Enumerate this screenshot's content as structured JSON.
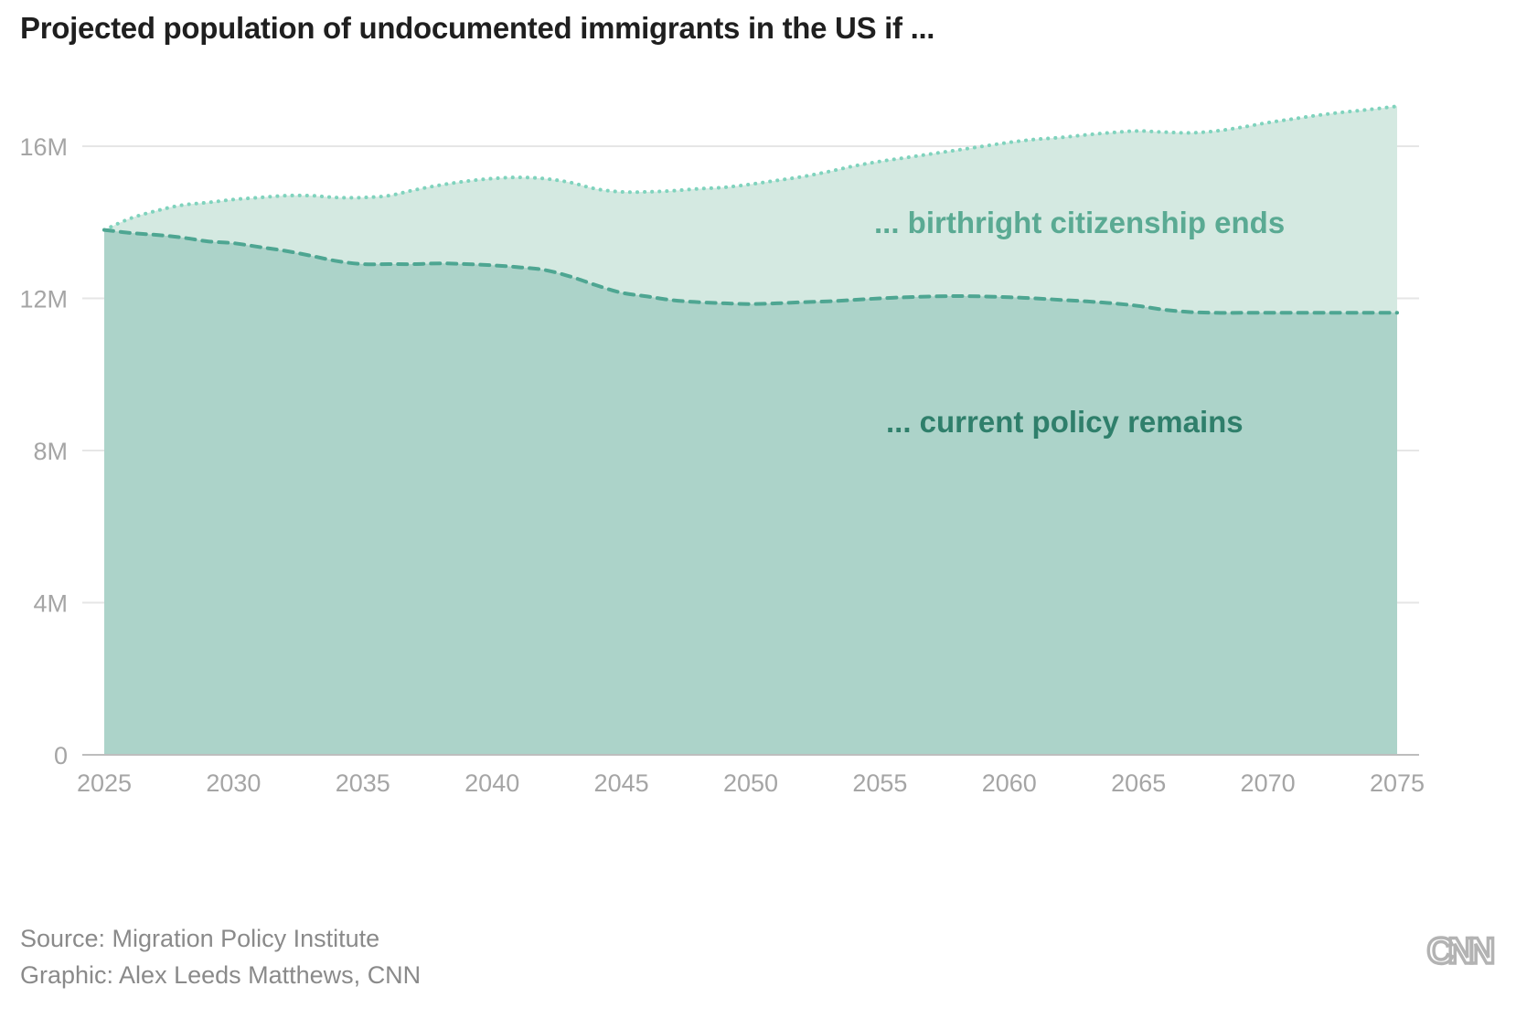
{
  "title": "Projected population of undocumented immigrants in the US if ...",
  "source": "Source: Migration Policy Institute",
  "credit": "Graphic: Alex Leeds Matthews, CNN",
  "logo": "CNN",
  "chart_data": {
    "type": "area",
    "title": "Projected population of undocumented immigrants in the US if ...",
    "xlabel": "",
    "ylabel": "",
    "xlim": [
      2025,
      2075
    ],
    "ylim": [
      0,
      17000000
    ],
    "x_ticks": [
      2025,
      2030,
      2035,
      2040,
      2045,
      2050,
      2055,
      2060,
      2065,
      2070,
      2075
    ],
    "x_tick_labels": [
      "2025",
      "2030",
      "2035",
      "2040",
      "2045",
      "2050",
      "2055",
      "2060",
      "2065",
      "2070",
      "2075"
    ],
    "y_ticks": [
      0,
      4000000,
      8000000,
      12000000,
      16000000
    ],
    "y_tick_labels": [
      "0",
      "4M",
      "8M",
      "12M",
      "16M"
    ],
    "grid": "horizontal",
    "x": [
      2025,
      2026,
      2027,
      2028,
      2029,
      2030,
      2031,
      2032,
      2033,
      2034,
      2035,
      2036,
      2037,
      2038,
      2039,
      2040,
      2041,
      2042,
      2043,
      2044,
      2045,
      2046,
      2047,
      2048,
      2049,
      2050,
      2051,
      2052,
      2053,
      2054,
      2055,
      2056,
      2057,
      2058,
      2059,
      2060,
      2061,
      2062,
      2063,
      2064,
      2065,
      2066,
      2067,
      2068,
      2069,
      2070,
      2071,
      2072,
      2073,
      2074,
      2075
    ],
    "series": [
      {
        "name": "... birthright citizenship ends",
        "line_style": "dotted",
        "fill": "#d4e9e1",
        "line": "#7fd3bd",
        "label_color": "#5aaa93",
        "values": [
          13800000,
          14100000,
          14300000,
          14450000,
          14520000,
          14600000,
          14650000,
          14700000,
          14700000,
          14650000,
          14650000,
          14700000,
          14850000,
          14980000,
          15080000,
          15150000,
          15180000,
          15150000,
          15050000,
          14880000,
          14800000,
          14800000,
          14830000,
          14880000,
          14920000,
          15000000,
          15100000,
          15200000,
          15330000,
          15480000,
          15600000,
          15700000,
          15800000,
          15900000,
          16000000,
          16100000,
          16180000,
          16230000,
          16300000,
          16360000,
          16400000,
          16370000,
          16350000,
          16400000,
          16500000,
          16620000,
          16720000,
          16820000,
          16900000,
          16970000,
          17050000
        ]
      },
      {
        "name": "... current policy remains",
        "line_style": "dashed",
        "fill": "#acd3c9",
        "line": "#4ea692",
        "label_color": "#2f7f6b",
        "values": [
          13800000,
          13720000,
          13670000,
          13600000,
          13500000,
          13450000,
          13350000,
          13250000,
          13120000,
          12980000,
          12900000,
          12900000,
          12900000,
          12920000,
          12900000,
          12870000,
          12820000,
          12750000,
          12580000,
          12350000,
          12150000,
          12050000,
          11950000,
          11900000,
          11870000,
          11850000,
          11870000,
          11900000,
          11920000,
          11960000,
          12000000,
          12030000,
          12050000,
          12060000,
          12050000,
          12030000,
          12000000,
          11960000,
          11920000,
          11870000,
          11800000,
          11700000,
          11640000,
          11620000,
          11620000,
          11620000,
          11620000,
          11620000,
          11620000,
          11620000,
          11620000
        ]
      }
    ]
  }
}
